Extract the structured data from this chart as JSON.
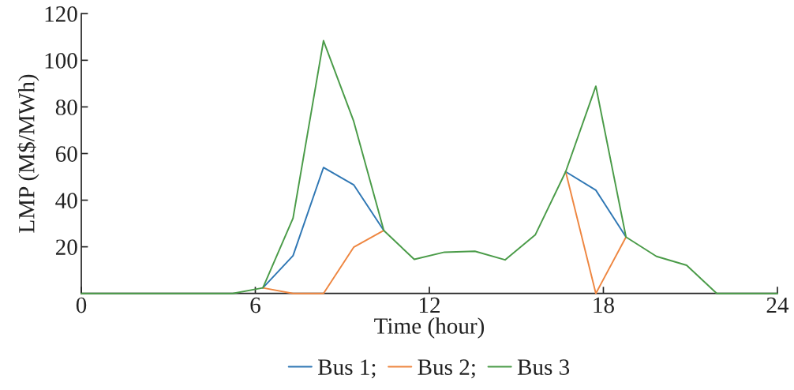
{
  "chart_data": {
    "type": "line",
    "xlabel": "Time (hour)",
    "ylabel": "LMP (M$/MWh)",
    "x": [
      0,
      1.04,
      2.09,
      3.13,
      4.17,
      5.22,
      6.26,
      7.3,
      8.35,
      9.39,
      10.43,
      11.48,
      12.52,
      13.57,
      14.61,
      15.65,
      16.7,
      17.74,
      18.78,
      19.83,
      20.87,
      21.91,
      22.96,
      24
    ],
    "xlim": [
      0,
      24
    ],
    "xticks": [
      0,
      6,
      12,
      18,
      24
    ],
    "ylim": [
      0,
      120
    ],
    "yticks": [
      20,
      40,
      60,
      80,
      100,
      120
    ],
    "grid": false,
    "legend": "bottom",
    "marker": "none",
    "line_style": "solid",
    "series": [
      {
        "name": "Bus 1;",
        "color": "#2f77b4",
        "values": [
          null,
          null,
          null,
          null,
          null,
          null,
          2.4,
          16.2,
          54,
          46.6,
          27,
          null,
          null,
          null,
          null,
          null,
          52.2,
          44.3,
          24.2,
          null,
          null,
          null,
          null,
          null
        ]
      },
      {
        "name": "Bus 2;",
        "color": "#ee8640",
        "values": [
          null,
          null,
          null,
          null,
          null,
          null,
          2.4,
          0,
          0,
          19.8,
          27,
          null,
          null,
          null,
          null,
          null,
          52.2,
          0,
          24.2,
          null,
          null,
          null,
          null,
          null
        ]
      },
      {
        "name": "Bus 3",
        "color": "#4a9b48",
        "values": [
          0,
          0,
          0,
          0,
          0,
          0,
          2.4,
          32.3,
          108.4,
          73.9,
          27,
          14.6,
          17.7,
          18.1,
          14.4,
          25.1,
          52.2,
          88.9,
          24.2,
          15.9,
          12.1,
          0,
          0,
          0
        ]
      }
    ]
  }
}
